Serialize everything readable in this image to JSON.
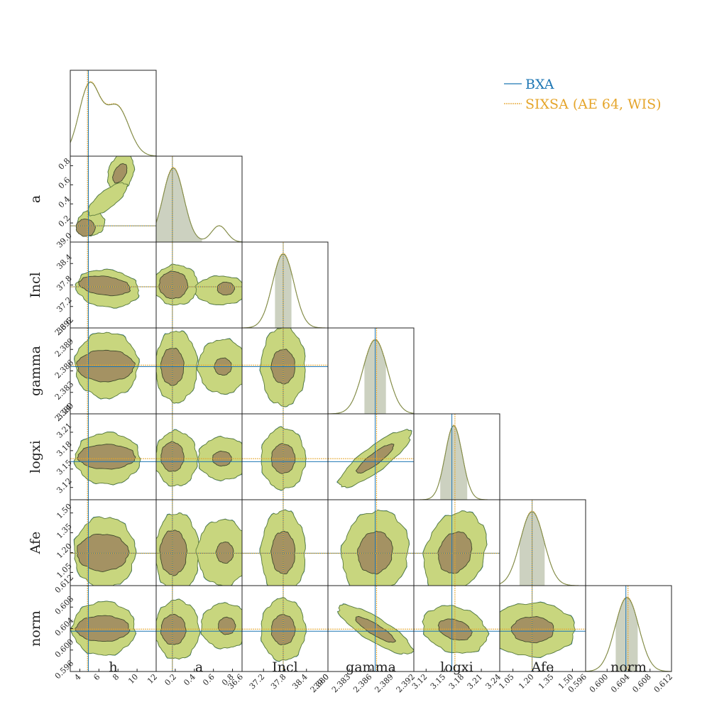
{
  "chart_data": {
    "type": "corner",
    "parameters": [
      "h",
      "a",
      "Incl",
      "gamma",
      "logxi",
      "Afe",
      "norm"
    ],
    "ranges": {
      "h": [
        3.0,
        12.0
      ],
      "a": [
        0.0,
        0.9
      ],
      "Incl": [
        36.6,
        39.0
      ],
      "gamma": [
        2.38,
        2.392
      ],
      "logxi": [
        3.1,
        3.24
      ],
      "Afe": [
        0.95,
        1.6
      ],
      "norm": [
        0.596,
        0.612
      ]
    },
    "tick_labels": {
      "h": [
        "4",
        "6",
        "8",
        "10",
        "12"
      ],
      "a": [
        "0.2",
        "0.4",
        "0.6",
        "0.8"
      ],
      "Incl": [
        "36.6",
        "37.2",
        "37.8",
        "38.4",
        "39.0"
      ],
      "gamma": [
        "2.380",
        "2.383",
        "2.386",
        "2.389",
        "2.392"
      ],
      "logxi": [
        "3.12",
        "3.15",
        "3.18",
        "3.21",
        "3.24"
      ],
      "Afe": [
        "1.05",
        "1.20",
        "1.35",
        "1.50"
      ],
      "norm": [
        "0.596",
        "0.600",
        "0.604",
        "0.608",
        "0.612"
      ]
    },
    "best_fit": {
      "BXA": {
        "h": 4.9,
        "a": 0.17,
        "Incl": 37.75,
        "gamma": 2.3866,
        "logxi": 3.162,
        "Afe": 1.195,
        "norm": 0.6035
      },
      "SIXSA (AE 64, WIS)": {
        "h": 4.8,
        "a": 0.17,
        "Incl": 37.75,
        "gamma": 2.3868,
        "logxi": 3.167,
        "Afe": 1.195,
        "norm": 0.6039
      }
    },
    "series": [
      {
        "name": "BXA",
        "color": "#1f77b4",
        "style": "solid"
      },
      {
        "name": "SIXSA (AE 64, WIS)",
        "color": "#e5a52a",
        "style": "dotted"
      }
    ],
    "legend_position": "top-right",
    "colors": {
      "outer_fill": "#c8d67e",
      "inner_fill": "#a49263",
      "hist_fill": "#ccd1c0",
      "hist_line": "#7d8b4c",
      "outline": "#5e7d3c"
    }
  }
}
